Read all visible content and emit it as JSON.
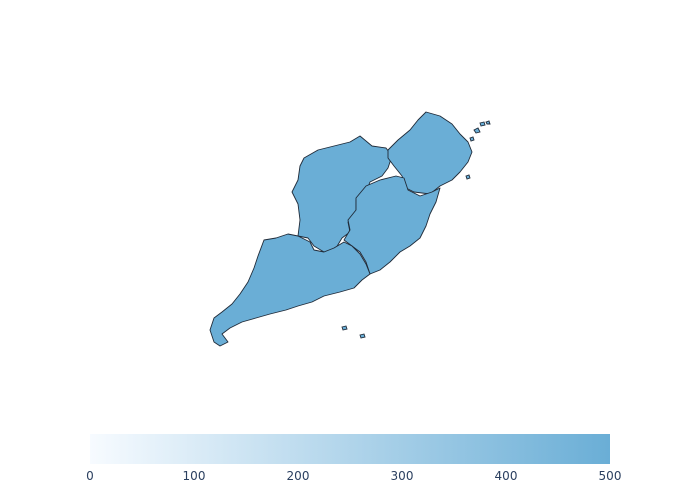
{
  "chart_data": {
    "type": "choropleth",
    "regions": [
      {
        "name": "Jiangxi",
        "value": 500
      },
      {
        "name": "Zhejiang",
        "value": 500
      },
      {
        "name": "Fujian",
        "value": 500
      },
      {
        "name": "Guangdong",
        "value": 500
      }
    ],
    "colorscale": {
      "min": 0,
      "max": 500,
      "low_color": "#f7fbff",
      "high_color": "#6aaed6",
      "tick_labels": [
        "0",
        "100",
        "200",
        "300",
        "400",
        "500"
      ],
      "orientation": "horizontal",
      "placement": "bottom"
    },
    "outline_color": "#1f2a38",
    "tick_color": "#2a3f5f"
  }
}
